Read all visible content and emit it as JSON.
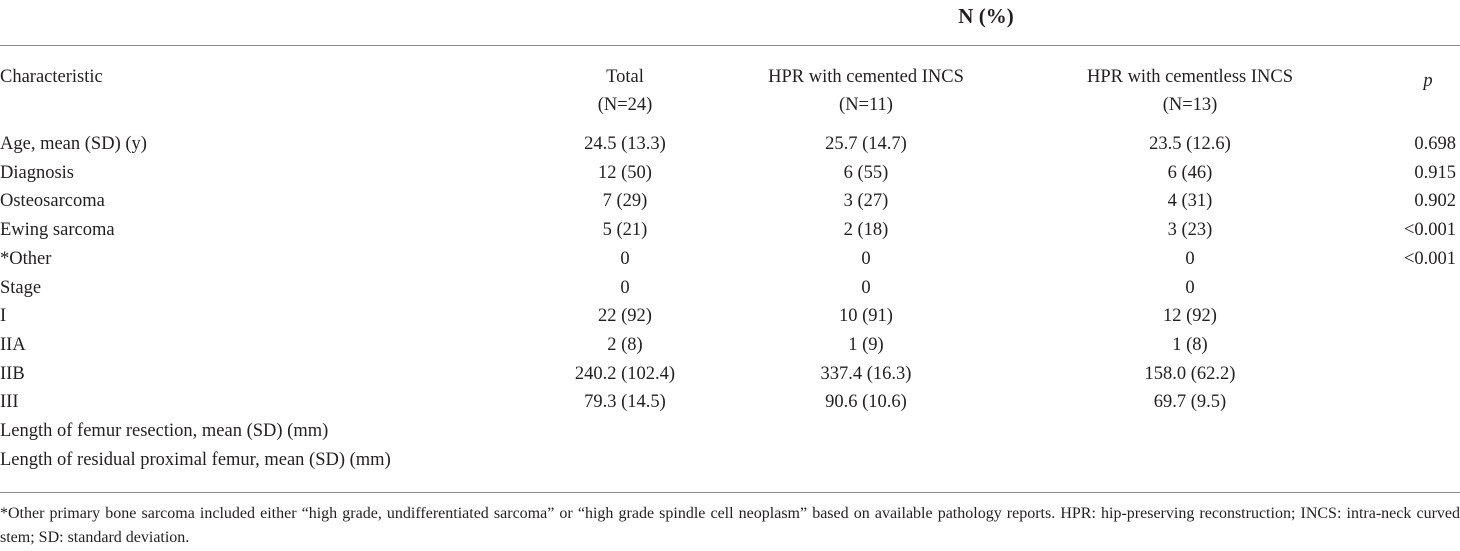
{
  "header": {
    "title": "N (%)"
  },
  "columns": {
    "characteristic": "Characteristic",
    "total": "Total",
    "total_n": "(N=24)",
    "cemented": "HPR with cemented INCS",
    "cemented_n": "(N=11)",
    "cementless": "HPR with cementless INCS",
    "cementless_n": "(N=13)",
    "p": "p"
  },
  "rows": [
    {
      "label": "Age, mean (SD) (y)",
      "total": "24.5 (13.3)",
      "cemented": "25.7 (14.7)",
      "cementless": "23.5 (12.6)",
      "p": "0.698"
    },
    {
      "label": "Diagnosis",
      "total": "12 (50)",
      "cemented": "6 (55)",
      "cementless": "6 (46)",
      "p": "0.915"
    },
    {
      "label": "Osteosarcoma",
      "total": "7 (29)",
      "cemented": "3 (27)",
      "cementless": "4 (31)",
      "p": "0.902"
    },
    {
      "label": "Ewing sarcoma",
      "total": "5 (21)",
      "cemented": "2 (18)",
      "cementless": "3 (23)",
      "p": "<0.001"
    },
    {
      "label": "*Other",
      "total": "0",
      "cemented": "0",
      "cementless": "0",
      "p": "<0.001"
    },
    {
      "label": "Stage",
      "total": "0",
      "cemented": "0",
      "cementless": "0",
      "p": ""
    },
    {
      "label": "I",
      "total": "22 (92)",
      "cemented": "10 (91)",
      "cementless": "12 (92)",
      "p": ""
    },
    {
      "label": "IIA",
      "total": "2 (8)",
      "cemented": "1 (9)",
      "cementless": "1 (8)",
      "p": ""
    },
    {
      "label": "IIB",
      "total": "240.2 (102.4)",
      "cemented": "337.4 (16.3)",
      "cementless": "158.0 (62.2)",
      "p": ""
    },
    {
      "label": "III",
      "total": "79.3 (14.5)",
      "cemented": "90.6 (10.6)",
      "cementless": "69.7 (9.5)",
      "p": ""
    },
    {
      "label": "Length of femur resection, mean (SD) (mm)",
      "total": "",
      "cemented": "",
      "cementless": "",
      "p": ""
    },
    {
      "label": "Length of residual proximal femur, mean (SD) (mm)",
      "total": "",
      "cemented": "",
      "cementless": "",
      "p": ""
    }
  ],
  "footnote": "*Other primary bone sarcoma included either “high grade, undifferentiated sarcoma” or “high grade spindle cell neoplasm” based on available pathology reports. HPR: hip-preserving reconstruction; INCS: intra-neck curved stem; SD: standard deviation."
}
